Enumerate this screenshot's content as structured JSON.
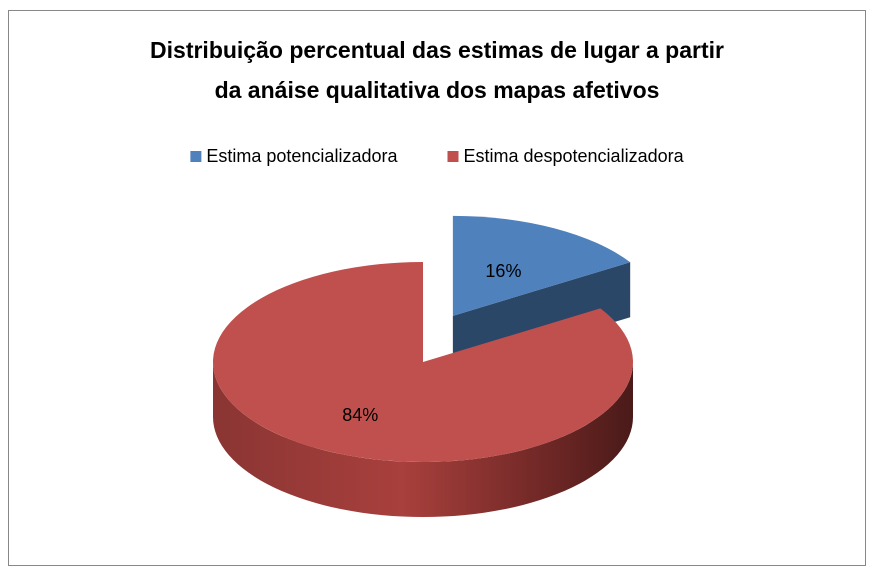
{
  "chart_data": {
    "type": "pie3d",
    "title": "Distribuição percentual das estimas de lugar a partir da anáise qualitativa dos mapas afetivos",
    "categories": [
      "Estima potencializadora",
      "Estima despotencializadora"
    ],
    "values": [
      16,
      84
    ],
    "value_labels": [
      "16%",
      "84%"
    ],
    "colors": [
      "#4f81bd",
      "#c0504d"
    ],
    "legend": "top",
    "exploded": [
      true,
      false
    ]
  }
}
